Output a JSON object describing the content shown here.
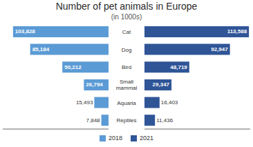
{
  "chart_data": {
    "type": "bar",
    "orientation": "horizontal",
    "title": "Number of pet animals in Europe",
    "subtitle": "(in 1000s)",
    "categories": [
      "Cat",
      "Dog",
      "Bird",
      "Small\nmammal",
      "Aquaria",
      "Reptiles"
    ],
    "series": [
      {
        "name": "2018",
        "color": "#5b9bd5",
        "values": [
          103828,
          85184,
          50212,
          26794,
          15493,
          7848
        ],
        "value_labels": [
          "103,828",
          "85,184",
          "50,212",
          "26,794",
          "15,493",
          "7,848"
        ]
      },
      {
        "name": "2021",
        "color": "#2f5597",
        "values": [
          113588,
          92947,
          48719,
          29347,
          16403,
          11436
        ],
        "value_labels": [
          "113,588",
          "92,947",
          "48,719",
          "29,347",
          "16,403",
          "11,436"
        ]
      }
    ],
    "xlim": [
      0,
      115000
    ],
    "tick_labels": false,
    "data_labels": true,
    "legend": "bottom"
  }
}
